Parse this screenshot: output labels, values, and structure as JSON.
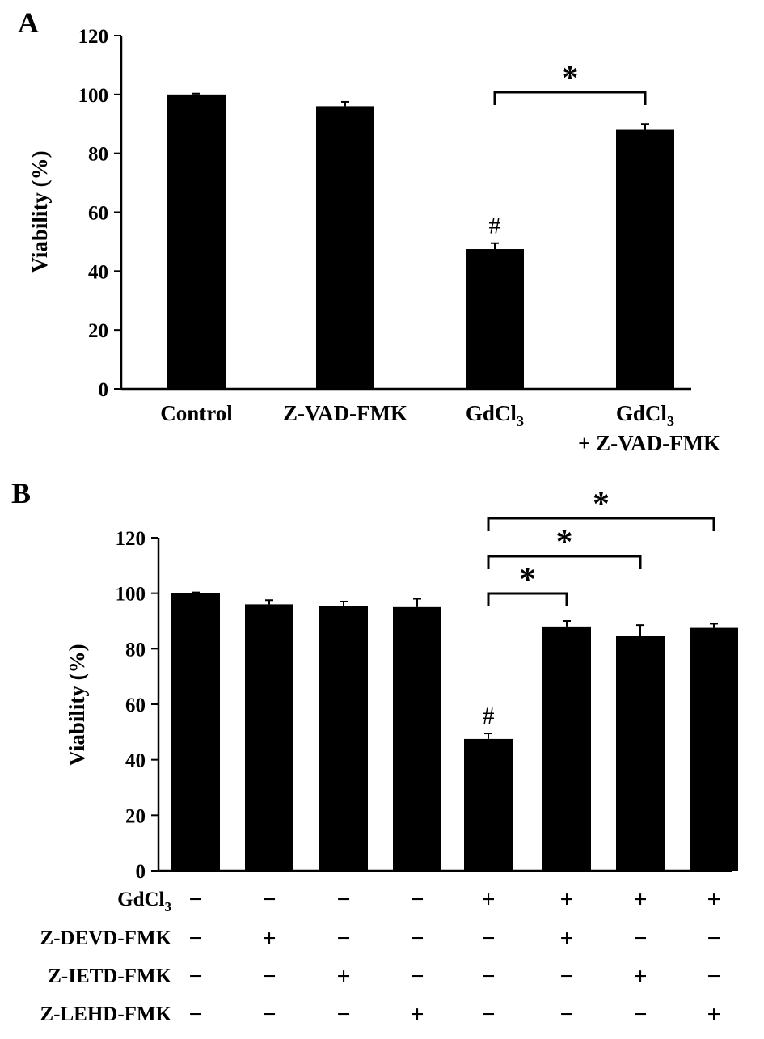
{
  "chart_data": [
    {
      "type": "bar",
      "panel": "A",
      "ylabel": "Viability (%)",
      "ylim": [
        0,
        120
      ],
      "yticks": [
        "0",
        "20",
        "40",
        "60",
        "80",
        "100",
        "120"
      ],
      "categories": [
        {
          "label": "Control",
          "sub": "",
          "label2": ""
        },
        {
          "label": "Z-VAD-FMK",
          "sub": "",
          "label2": ""
        },
        {
          "label": "GdCl",
          "sub": "3",
          "label2": ""
        },
        {
          "label": "GdCl",
          "sub": "3",
          "label2": "+ Z-VAD-FMK"
        }
      ],
      "values": [
        100,
        96,
        47.5,
        88
      ],
      "errors": [
        0.3,
        1.5,
        2.0,
        2.0
      ],
      "markers": [
        {
          "index": 2,
          "text": "#"
        }
      ],
      "brackets": [
        {
          "from": 2,
          "to": 3,
          "text": "*"
        }
      ],
      "grid": false,
      "bar_color": "#000000"
    },
    {
      "type": "bar",
      "panel": "B",
      "ylabel": "Viability (%)",
      "ylim": [
        0,
        120
      ],
      "yticks": [
        "0",
        "20",
        "40",
        "60",
        "80",
        "100",
        "120"
      ],
      "values": [
        100,
        96,
        95.5,
        95,
        47.5,
        88,
        84.5,
        87.5
      ],
      "errors": [
        0.3,
        1.5,
        1.5,
        3.0,
        2.0,
        2.0,
        4.0,
        1.5
      ],
      "markers": [
        {
          "index": 4,
          "text": "#"
        }
      ],
      "brackets": [
        {
          "from": 4,
          "to": 5,
          "text": "*"
        },
        {
          "from": 4,
          "to": 6,
          "text": "*"
        },
        {
          "from": 4,
          "to": 7,
          "text": "*"
        }
      ],
      "condition_rows": [
        {
          "label": "GdCl",
          "sub": "3",
          "signs": [
            "−",
            "−",
            "−",
            "−",
            "+",
            "+",
            "+",
            "+"
          ]
        },
        {
          "label": "Z-DEVD-FMK",
          "sub": "",
          "signs": [
            "−",
            "+",
            "−",
            "−",
            "−",
            "+",
            "−",
            "−"
          ]
        },
        {
          "label": "Z-IETD-FMK",
          "sub": "",
          "signs": [
            "−",
            "−",
            "+",
            "−",
            "−",
            "−",
            "+",
            "−"
          ]
        },
        {
          "label": "Z-LEHD-FMK",
          "sub": "",
          "signs": [
            "−",
            "−",
            "−",
            "+",
            "−",
            "−",
            "−",
            "+"
          ]
        }
      ],
      "grid": false,
      "bar_color": "#000000"
    }
  ]
}
